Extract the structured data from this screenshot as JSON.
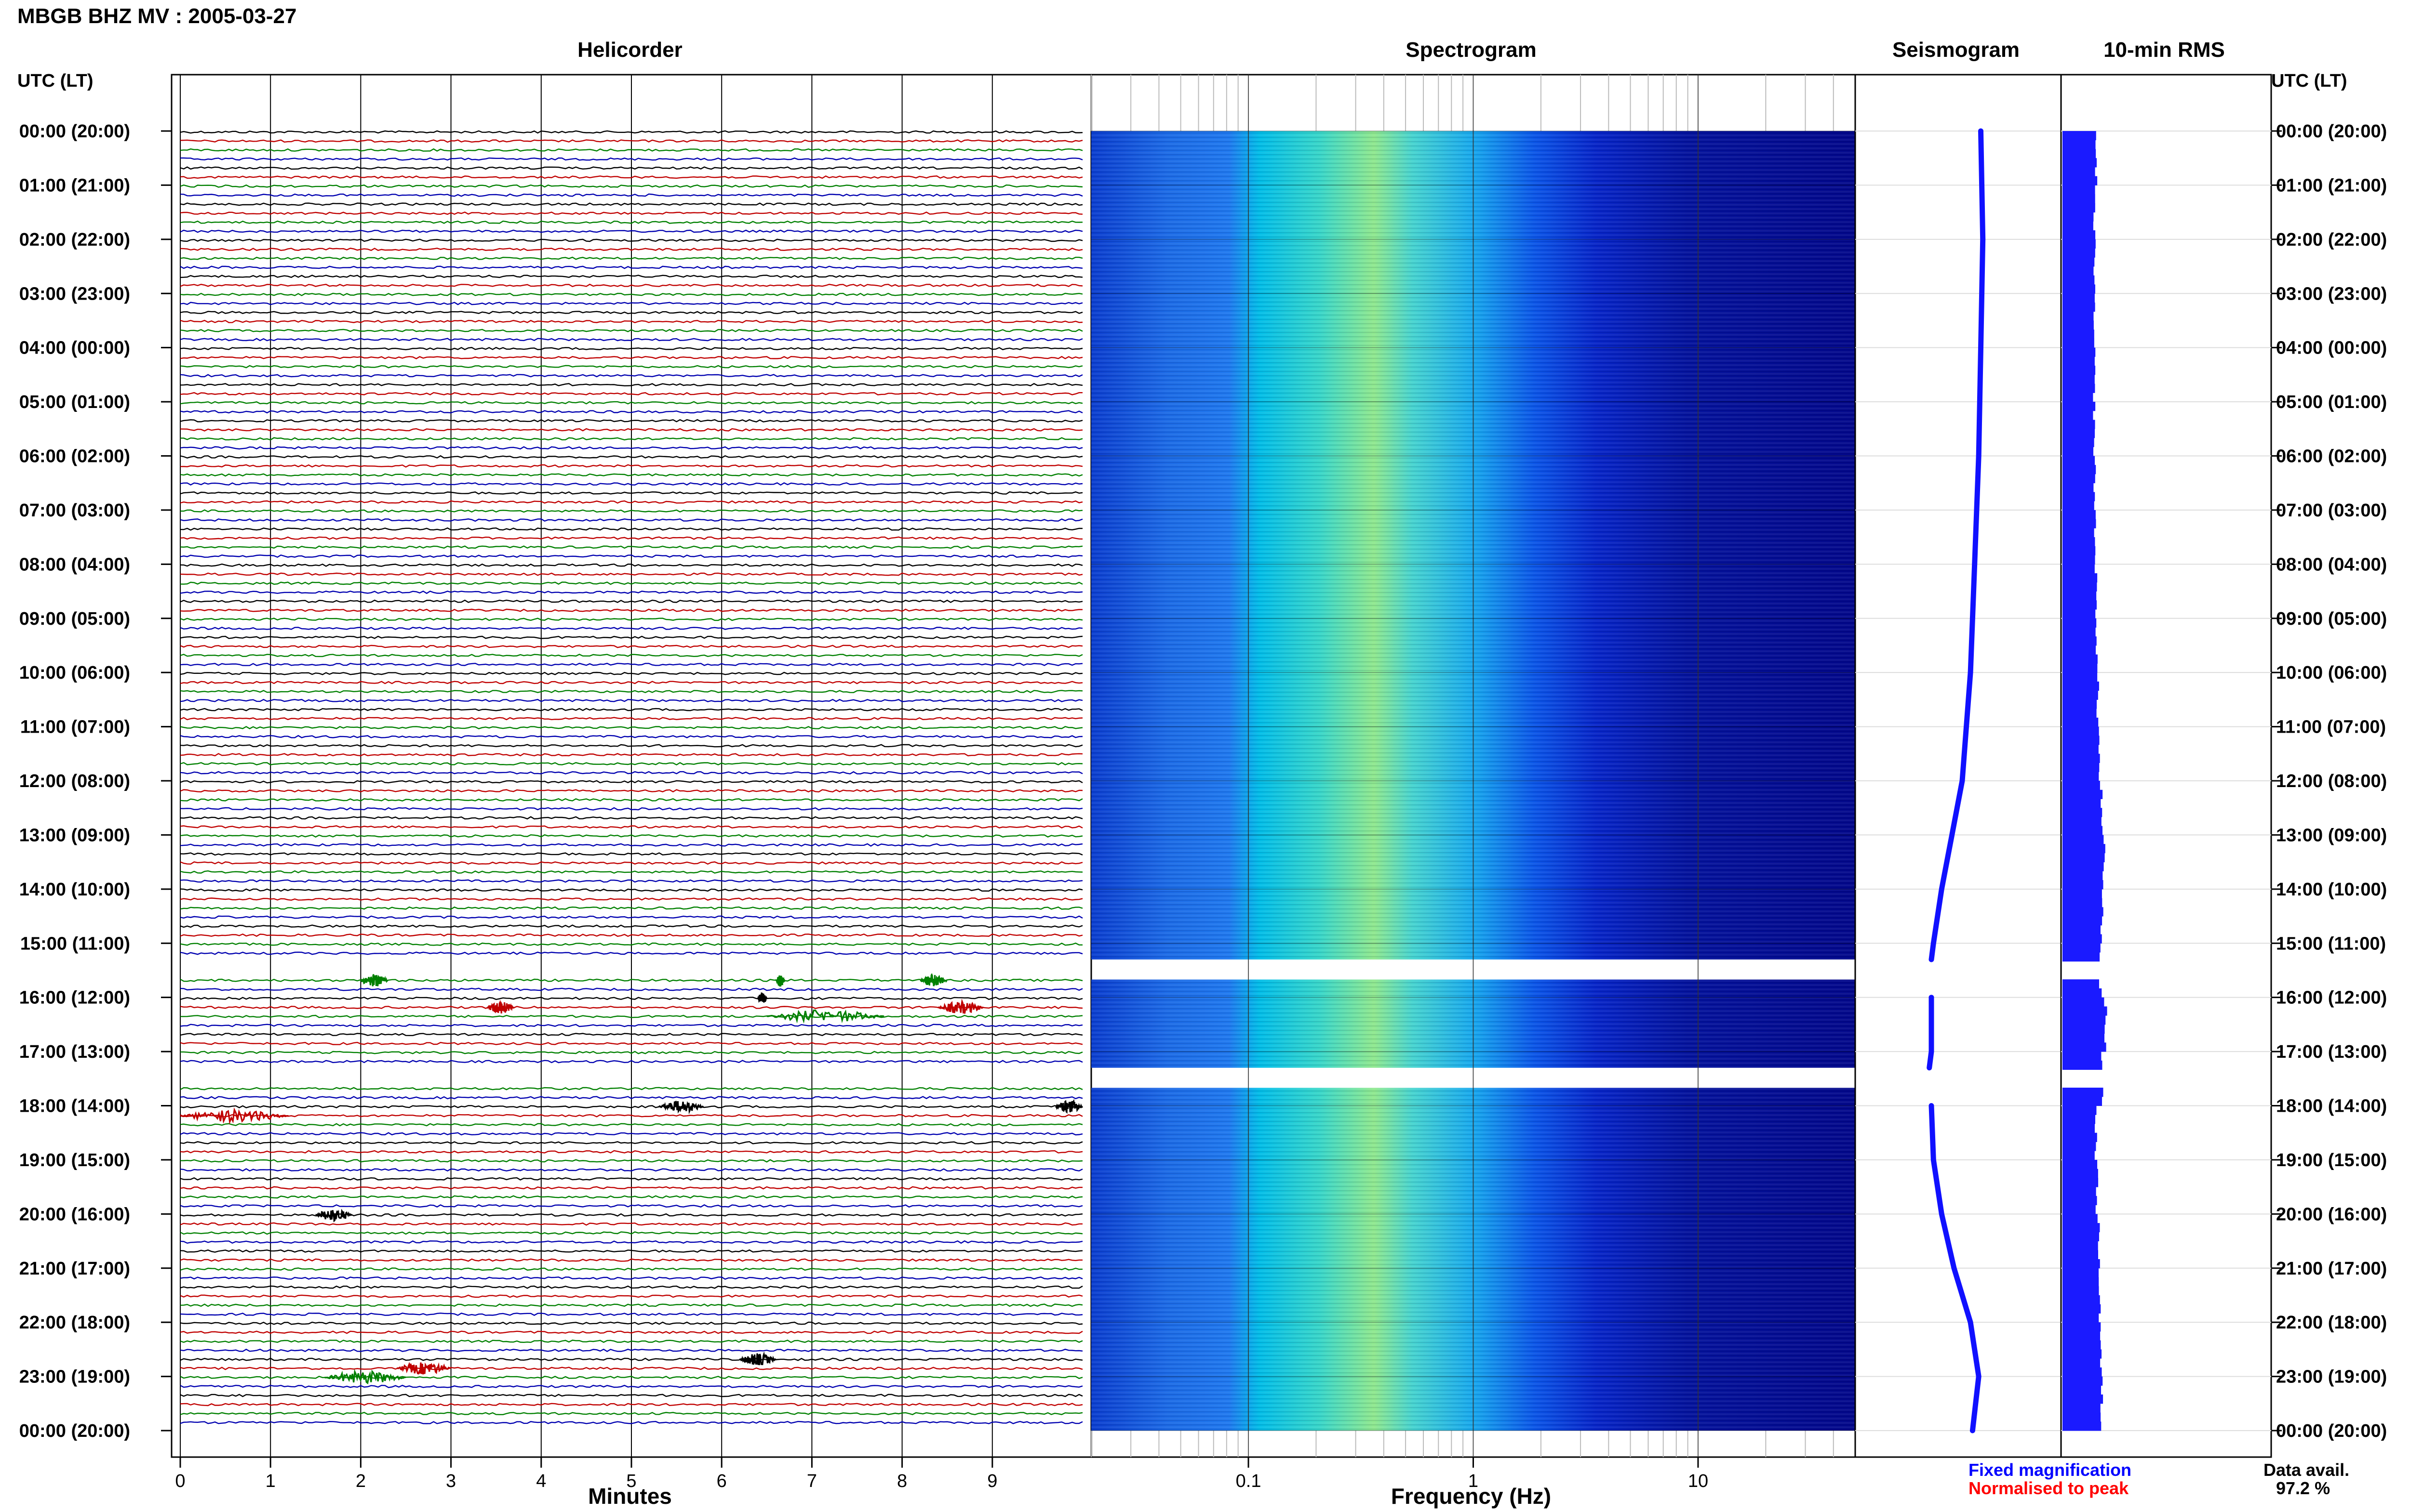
{
  "header": {
    "title": "MBGB BHZ MV : 2005-03-27",
    "utc_label_left": "UTC (LT)",
    "utc_label_right": "UTC (LT)"
  },
  "panels": {
    "helicorder_title": "Helicorder",
    "spectrogram_title": "Spectrogram",
    "seismogram_title": "Seismogram",
    "rms_title": "10-min RMS"
  },
  "time_labels": [
    "00:00 (20:00)",
    "01:00 (21:00)",
    "02:00 (22:00)",
    "03:00 (23:00)",
    "04:00 (00:00)",
    "05:00 (01:00)",
    "06:00 (02:00)",
    "07:00 (03:00)",
    "08:00 (04:00)",
    "09:00 (05:00)",
    "10:00 (06:00)",
    "11:00 (07:00)",
    "12:00 (08:00)",
    "13:00 (09:00)",
    "14:00 (10:00)",
    "15:00 (11:00)",
    "16:00 (12:00)",
    "17:00 (13:00)",
    "18:00 (14:00)",
    "19:00 (15:00)",
    "20:00 (16:00)",
    "21:00 (17:00)",
    "22:00 (18:00)",
    "23:00 (19:00)",
    "00:00 (20:00)"
  ],
  "footer": {
    "legend_fixed": "Fixed magnification",
    "legend_normalised": "Normalised to peak",
    "data_avail_label": "Data avail.",
    "data_avail_value": "97.2 %"
  },
  "colors": {
    "trace_cycle": [
      "#000000",
      "#c00000",
      "#008000",
      "#0000b0"
    ],
    "seismogram_line": "#1010ff",
    "rms_bar": "#1a1aff",
    "legend_fixed": "#0000ff",
    "legend_normalised": "#ff0000"
  },
  "chart_data": [
    {
      "type": "line",
      "panel": "helicorder",
      "xlabel": "Minutes",
      "x_ticks": [
        0,
        1,
        2,
        3,
        4,
        5,
        6,
        7,
        8,
        9
      ],
      "xlim": [
        0,
        10
      ],
      "rows_per_hour": 6,
      "total_hours": 24,
      "data_gaps_utc_hours": [
        [
          15.3,
          15.67
        ],
        [
          17.3,
          17.67
        ]
      ],
      "events": [
        {
          "row_hour": 15.67,
          "minute_start": 2.0,
          "minute_end": 2.3
        },
        {
          "row_hour": 15.67,
          "minute_start": 6.6,
          "minute_end": 6.7
        },
        {
          "row_hour": 15.67,
          "minute_start": 8.2,
          "minute_end": 8.5
        },
        {
          "row_hour": 16.0,
          "minute_start": 6.4,
          "minute_end": 6.5
        },
        {
          "row_hour": 16.17,
          "minute_start": 3.4,
          "minute_end": 3.7
        },
        {
          "row_hour": 16.17,
          "minute_start": 8.4,
          "minute_end": 8.9
        },
        {
          "row_hour": 16.33,
          "minute_start": 6.5,
          "minute_end": 7.8
        },
        {
          "row_hour": 18.17,
          "minute_start": 0.0,
          "minute_end": 1.2
        },
        {
          "row_hour": 18.0,
          "minute_start": 5.3,
          "minute_end": 5.8
        },
        {
          "row_hour": 18.0,
          "minute_start": 9.7,
          "minute_end": 10.0
        },
        {
          "row_hour": 20.0,
          "minute_start": 1.5,
          "minute_end": 1.9
        },
        {
          "row_hour": 22.67,
          "minute_start": 6.2,
          "minute_end": 6.6
        },
        {
          "row_hour": 22.83,
          "minute_start": 2.4,
          "minute_end": 3.0
        },
        {
          "row_hour": 23.0,
          "minute_start": 1.6,
          "minute_end": 2.5
        }
      ]
    },
    {
      "type": "heatmap",
      "panel": "spectrogram",
      "xlabel": "Frequency (Hz)",
      "x_scale": "log",
      "xlim": [
        0.02,
        50
      ],
      "x_ticks": [
        0.1,
        1,
        10
      ],
      "x_tick_labels": [
        "0.1",
        "1",
        "10"
      ],
      "colormap": [
        "#00007a",
        "#0000ff",
        "#0070ff",
        "#00d8ff",
        "#7af0a0",
        "#d8ff5a"
      ],
      "peak_band_hz": [
        0.2,
        0.5
      ],
      "data_gaps_utc_hours": [
        [
          15.3,
          15.67
        ],
        [
          17.3,
          17.67
        ]
      ]
    },
    {
      "type": "line",
      "panel": "seismogram",
      "y_hours": [
        0,
        2,
        4,
        6,
        8,
        10,
        12,
        13,
        14,
        15,
        15.3,
        15.67,
        16,
        17,
        17.3,
        17.67,
        18,
        19,
        20,
        21,
        22,
        23,
        24
      ],
      "x_offset_fraction": [
        0.61,
        0.62,
        0.61,
        0.6,
        0.58,
        0.56,
        0.52,
        0.47,
        0.42,
        0.38,
        0.37,
        null,
        0.37,
        0.37,
        0.36,
        null,
        0.37,
        0.38,
        0.42,
        0.48,
        0.56,
        0.6,
        0.57
      ],
      "data_gaps_utc_hours": [
        [
          15.3,
          15.67
        ],
        [
          17.3,
          17.67
        ]
      ]
    },
    {
      "type": "bar",
      "panel": "10-min RMS",
      "orientation": "horizontal",
      "rms_hourly_relative": [
        0.78,
        0.74,
        0.75,
        0.73,
        0.74,
        0.74,
        0.75,
        0.76,
        0.78,
        0.8,
        0.82,
        0.85,
        0.9,
        0.96,
        0.92,
        0.88,
        1.0,
        0.93,
        0.78,
        0.8,
        0.84,
        0.87,
        0.89,
        0.91
      ],
      "data_gaps_utc_hours": [
        [
          15.3,
          15.67
        ],
        [
          17.3,
          17.67
        ]
      ]
    }
  ]
}
